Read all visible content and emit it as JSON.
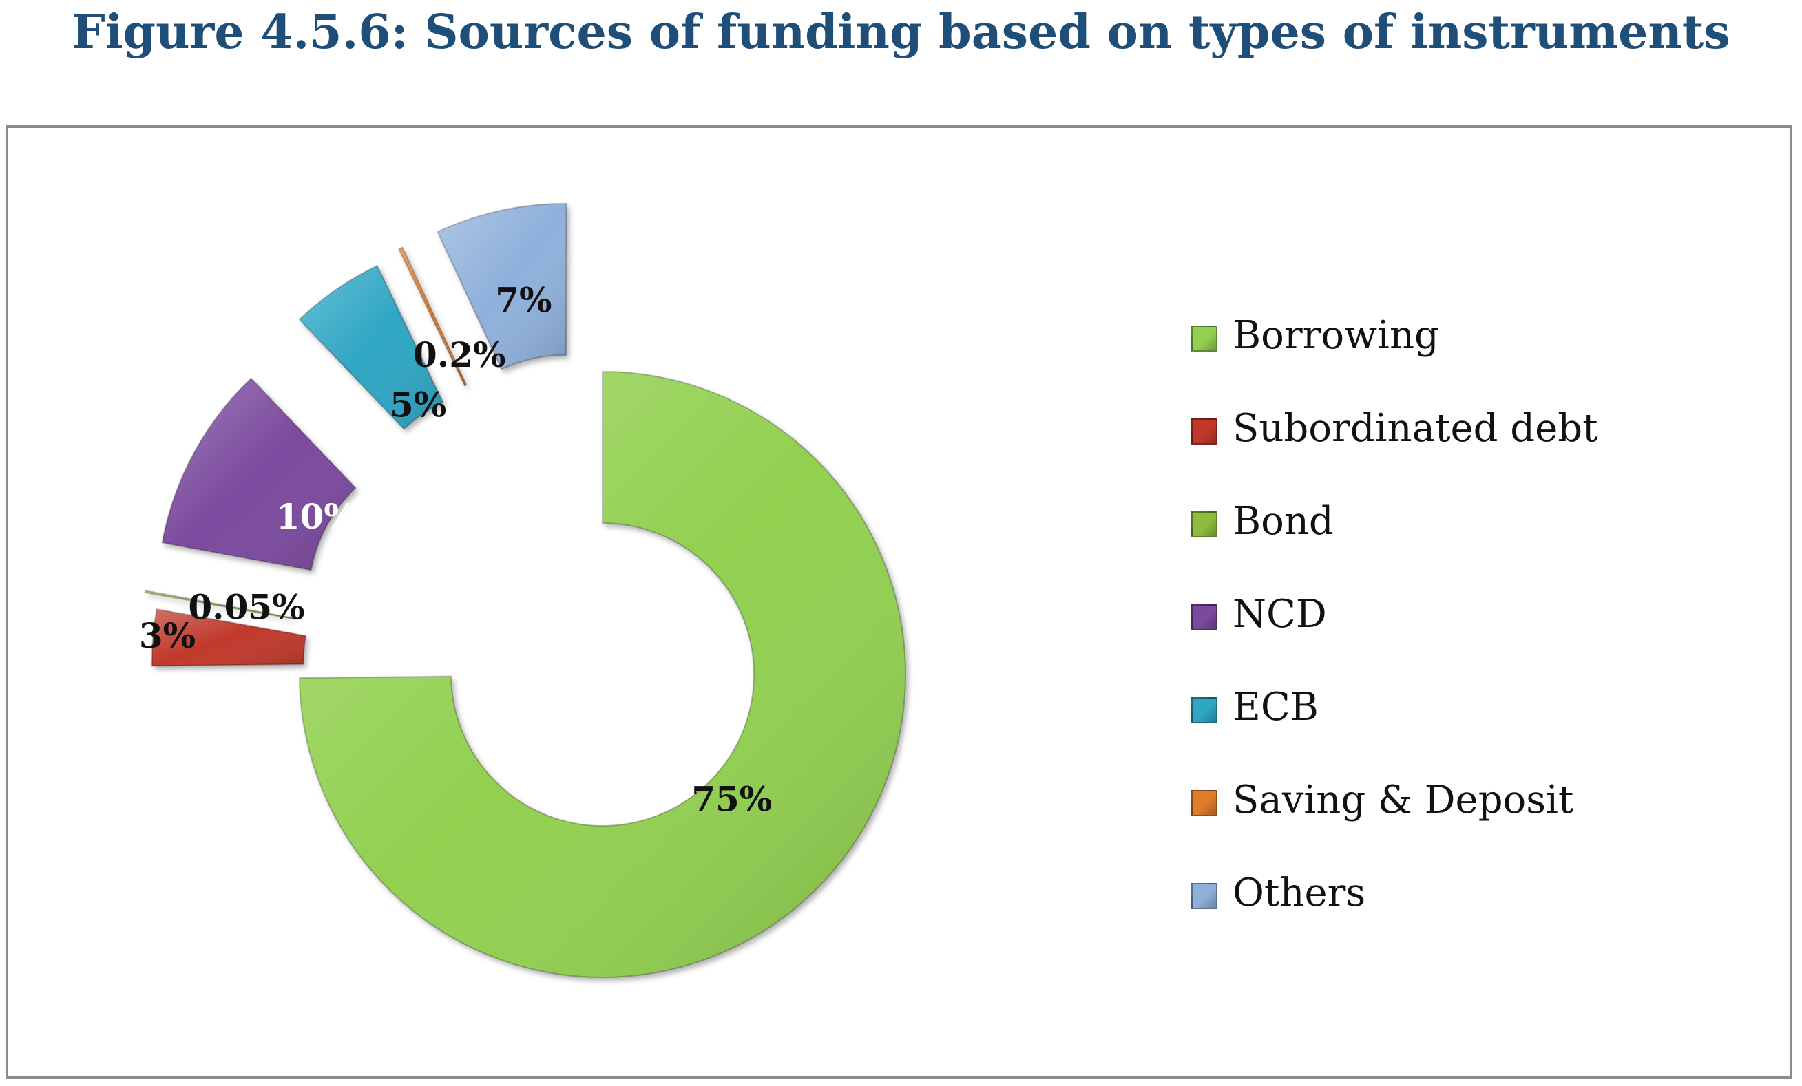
{
  "title": "Figure 4.5.6: Sources of funding based on types of instruments",
  "chart_data": {
    "type": "pie",
    "subtype": "exploded-donut",
    "title": "Figure 4.5.6: Sources of funding based on types of instruments",
    "legend_position": "right",
    "series": [
      {
        "name": "Borrowing",
        "value": 75,
        "label": "75%",
        "color": "#92d050"
      },
      {
        "name": "Subordinated debt",
        "value": 3,
        "label": "3%",
        "color": "#c0392b"
      },
      {
        "name": "Bond",
        "value": 0.05,
        "label": "0.05%",
        "color": "#8fbc3c"
      },
      {
        "name": "NCD",
        "value": 10,
        "label": "10%",
        "color": "#7b4a9e"
      },
      {
        "name": "ECB",
        "value": 5,
        "label": "5%",
        "color": "#2ea6c4"
      },
      {
        "name": "Saving & Deposit",
        "value": 0.2,
        "label": "0.2%",
        "color": "#e07b2a"
      },
      {
        "name": "Others",
        "value": 7,
        "label": "7%",
        "color": "#8fb0db"
      }
    ]
  }
}
